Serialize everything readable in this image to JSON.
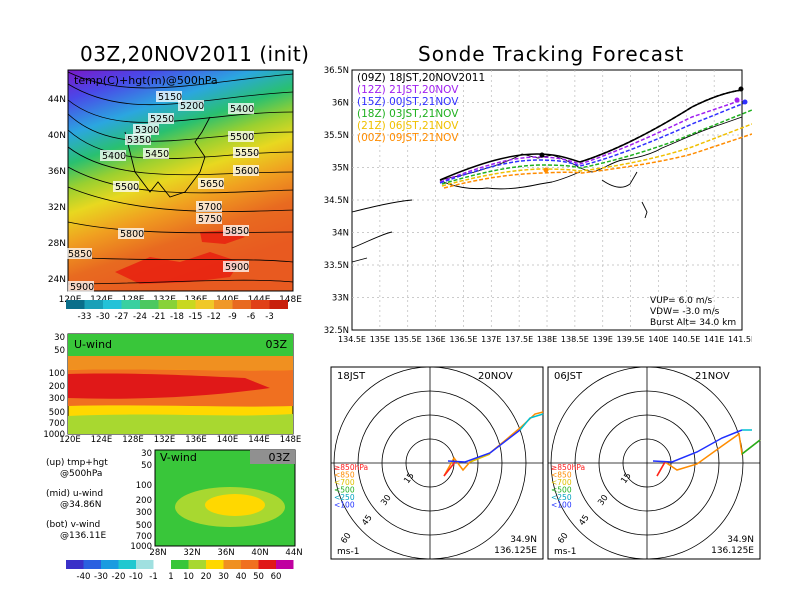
{
  "left_title": "03Z,20NOV2011 (init)",
  "map_panel": {
    "label": "temp(C)+hgt(m)@500hPa",
    "yticks": [
      "44N",
      "40N",
      "36N",
      "32N",
      "28N",
      "24N"
    ],
    "xticks": [
      "120E",
      "124E",
      "128E",
      "132E",
      "136E",
      "140E",
      "144E",
      "148E"
    ],
    "contour_labels": [
      "5150",
      "5200",
      "5250",
      "5300",
      "5350",
      "5400",
      "5450",
      "5400",
      "5500",
      "5500",
      "5550",
      "5600",
      "5650",
      "5700",
      "5750",
      "5800",
      "5850",
      "5850",
      "5900",
      "5900"
    ],
    "colorbar": [
      "-33",
      "-30",
      "-27",
      "-24",
      "-21",
      "-18",
      "-15",
      "-12",
      "-9",
      "-6",
      "-3"
    ]
  },
  "uwind_panel": {
    "label": "U-wind",
    "time": "03Z",
    "yticks": [
      "30",
      "50",
      "100",
      "200",
      "300",
      "500",
      "700",
      "1000"
    ],
    "xticks": [
      "120E",
      "124E",
      "128E",
      "132E",
      "136E",
      "140E",
      "144E",
      "148E"
    ]
  },
  "vwind_panel": {
    "label": "V-wind",
    "time": "03Z",
    "yticks": [
      "30",
      "50",
      "100",
      "200",
      "300",
      "500",
      "700",
      "1000"
    ],
    "xticks": [
      "28N",
      "32N",
      "36N",
      "40N",
      "44N"
    ]
  },
  "legend_notes": [
    {
      "top": "(up) tmp+hgt",
      "bottom": "@500hPa"
    },
    {
      "top": "(mid) u-wind",
      "bottom": "@34.86N"
    },
    {
      "top": "(bot) v-wind",
      "bottom": "@136.11E"
    }
  ],
  "wind_colorbar": [
    "-40",
    "-30",
    "-20",
    "-10",
    "-1",
    "1",
    "10",
    "20",
    "30",
    "40",
    "50",
    "60"
  ],
  "sonde_title": "Sonde Tracking Forecast",
  "track_legend": [
    {
      "label": "(09Z)  18JST,20NOV2011",
      "color": "#000000"
    },
    {
      "label": "(12Z)  21JST,20NOV",
      "color": "#a020f0"
    },
    {
      "label": "(15Z)  00JST,21NOV",
      "color": "#3030ff"
    },
    {
      "label": "(18Z)  03JST,21NOV",
      "color": "#20b020"
    },
    {
      "label": "(21Z)  06JST,21NOV",
      "color": "#f0c000"
    },
    {
      "label": "(00Z)  09JST,21NOV",
      "color": "#ff8c00"
    }
  ],
  "track_map": {
    "yticks": [
      "36.5N",
      "36N",
      "35.5N",
      "35N",
      "34.5N",
      "34N",
      "33.5N",
      "33N",
      "32.5N"
    ],
    "xticks": [
      "134.5E",
      "135E",
      "135.5E",
      "136E",
      "136.5E",
      "137E",
      "137.5E",
      "138E",
      "138.5E",
      "139E",
      "139.5E",
      "140E",
      "140.5E",
      "141E",
      "141.5E"
    ],
    "params": [
      "VUP=  6.0  m/s",
      "VDW= -3.0  m/s",
      "Burst Alt=  34.0  km"
    ]
  },
  "hodographs": [
    {
      "time": "18JST",
      "date": "20NOV",
      "coord1": "34.9N",
      "coord2": "136.125E",
      "unit": "ms-1",
      "rings": [
        "15",
        "30",
        "45",
        "60"
      ],
      "levels": [
        "≥850hPa",
        "<850",
        "<700",
        "<500",
        "<250",
        "<100"
      ]
    },
    {
      "time": "06JST",
      "date": "21NOV",
      "coord1": "34.9N",
      "coord2": "136.125E",
      "unit": "ms-1",
      "rings": [
        "15",
        "30",
        "45",
        "60"
      ],
      "levels": [
        "≥850hPa",
        "<850",
        "<700",
        "<500",
        "<250",
        "<100"
      ]
    }
  ],
  "colors": {
    "level_colors": [
      "#ff2020",
      "#ff8c00",
      "#e0c000",
      "#20b020",
      "#00a0c0",
      "#2030ff"
    ]
  }
}
